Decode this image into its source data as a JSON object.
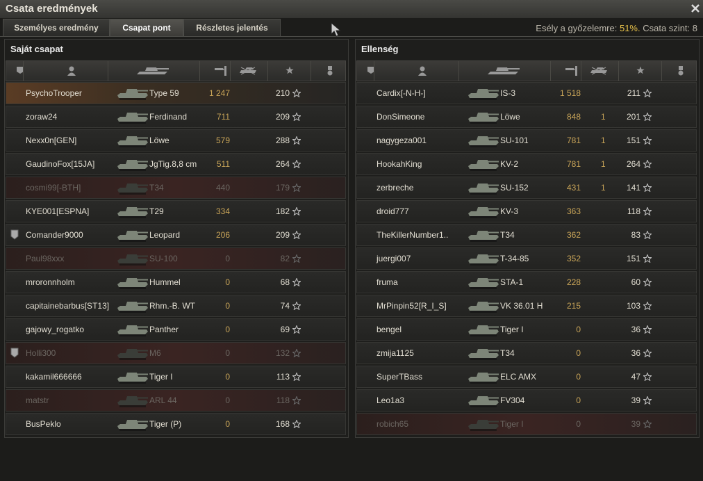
{
  "title": "Csata eredmények",
  "tabs": [
    "Személyes eredmény",
    "Csapat pont",
    "Részletes jelentés"
  ],
  "active_tab": 1,
  "win_chance_label": "Esély a győzelemre:",
  "win_chance": "51%.",
  "battle_level_text": "Csata szint: 8",
  "teams": [
    {
      "title": "Saját csapat",
      "rows": [
        {
          "name": "PsychoTrooper",
          "tank": "Type 59",
          "damage": "1 247",
          "xp": "210",
          "self": true
        },
        {
          "name": "zoraw24",
          "tank": "Ferdinand",
          "damage": "711",
          "xp": "209"
        },
        {
          "name": "Nexx0n[GEN]",
          "tank": "Löwe",
          "damage": "579",
          "xp": "288"
        },
        {
          "name": "GaudinoFox[15JA]",
          "tank": "JgTig.8,8 cm",
          "damage": "511",
          "xp": "264"
        },
        {
          "name": "cosmi99[-BTH]",
          "tank": "T34",
          "damage": "440",
          "xp": "179",
          "dead": true
        },
        {
          "name": "KYE001[ESPNA]",
          "tank": "T29",
          "damage": "334",
          "xp": "182"
        },
        {
          "name": "Comander9000",
          "tank": "Leopard",
          "damage": "206",
          "xp": "209",
          "badge": true
        },
        {
          "name": "Paul98xxx",
          "tank": "SU-100",
          "damage": "0",
          "xp": "82",
          "dead": true
        },
        {
          "name": "mroronnholm",
          "tank": "Hummel",
          "damage": "0",
          "xp": "68"
        },
        {
          "name": "capitainebarbus[ST13]",
          "tank": "Rhm.-B. WT",
          "damage": "0",
          "xp": "74"
        },
        {
          "name": "gajowy_rogatko",
          "tank": "Panther",
          "damage": "0",
          "xp": "69"
        },
        {
          "name": "Holli300",
          "tank": "M6",
          "damage": "0",
          "xp": "132",
          "dead": true,
          "badge": true
        },
        {
          "name": "kakamil666666",
          "tank": "Tiger I",
          "damage": "0",
          "xp": "113"
        },
        {
          "name": "matstr",
          "tank": "ARL 44",
          "damage": "0",
          "xp": "118",
          "dead": true
        },
        {
          "name": "BusPeklo",
          "tank": "Tiger (P)",
          "damage": "0",
          "xp": "168"
        }
      ]
    },
    {
      "title": "Ellenség",
      "rows": [
        {
          "name": "Cardix[-N-H-]",
          "tank": "IS-3",
          "damage": "1 518",
          "xp": "211"
        },
        {
          "name": "DonSimeone",
          "tank": "Löwe",
          "damage": "848",
          "kills": "1",
          "xp": "201"
        },
        {
          "name": "nagygeza001",
          "tank": "SU-101",
          "damage": "781",
          "kills": "1",
          "xp": "151"
        },
        {
          "name": "HookahKing",
          "tank": "KV-2",
          "damage": "781",
          "kills": "1",
          "xp": "264"
        },
        {
          "name": "zerbreche",
          "tank": "SU-152",
          "damage": "431",
          "kills": "1",
          "xp": "141"
        },
        {
          "name": "droid777",
          "tank": "KV-3",
          "damage": "363",
          "xp": "118"
        },
        {
          "name": "TheKillerNumber1..",
          "tank": "T34",
          "damage": "362",
          "xp": "83"
        },
        {
          "name": "juergi007",
          "tank": "T-34-85",
          "damage": "352",
          "xp": "151"
        },
        {
          "name": "fruma",
          "tank": "STA-1",
          "damage": "228",
          "xp": "60"
        },
        {
          "name": "MrPinpin52[R_I_S]",
          "tank": "VK 36.01 H",
          "damage": "215",
          "xp": "103"
        },
        {
          "name": "bengel",
          "tank": "Tiger I",
          "damage": "0",
          "xp": "36"
        },
        {
          "name": "zmija1125",
          "tank": "T34",
          "damage": "0",
          "xp": "36"
        },
        {
          "name": "SuperTBass",
          "tank": "ELC AMX",
          "damage": "0",
          "xp": "47"
        },
        {
          "name": "Leo1a3",
          "tank": "FV304",
          "damage": "0",
          "xp": "39"
        },
        {
          "name": "robich65",
          "tank": "Tiger I",
          "damage": "0",
          "xp": "39",
          "dead": true
        }
      ]
    }
  ]
}
